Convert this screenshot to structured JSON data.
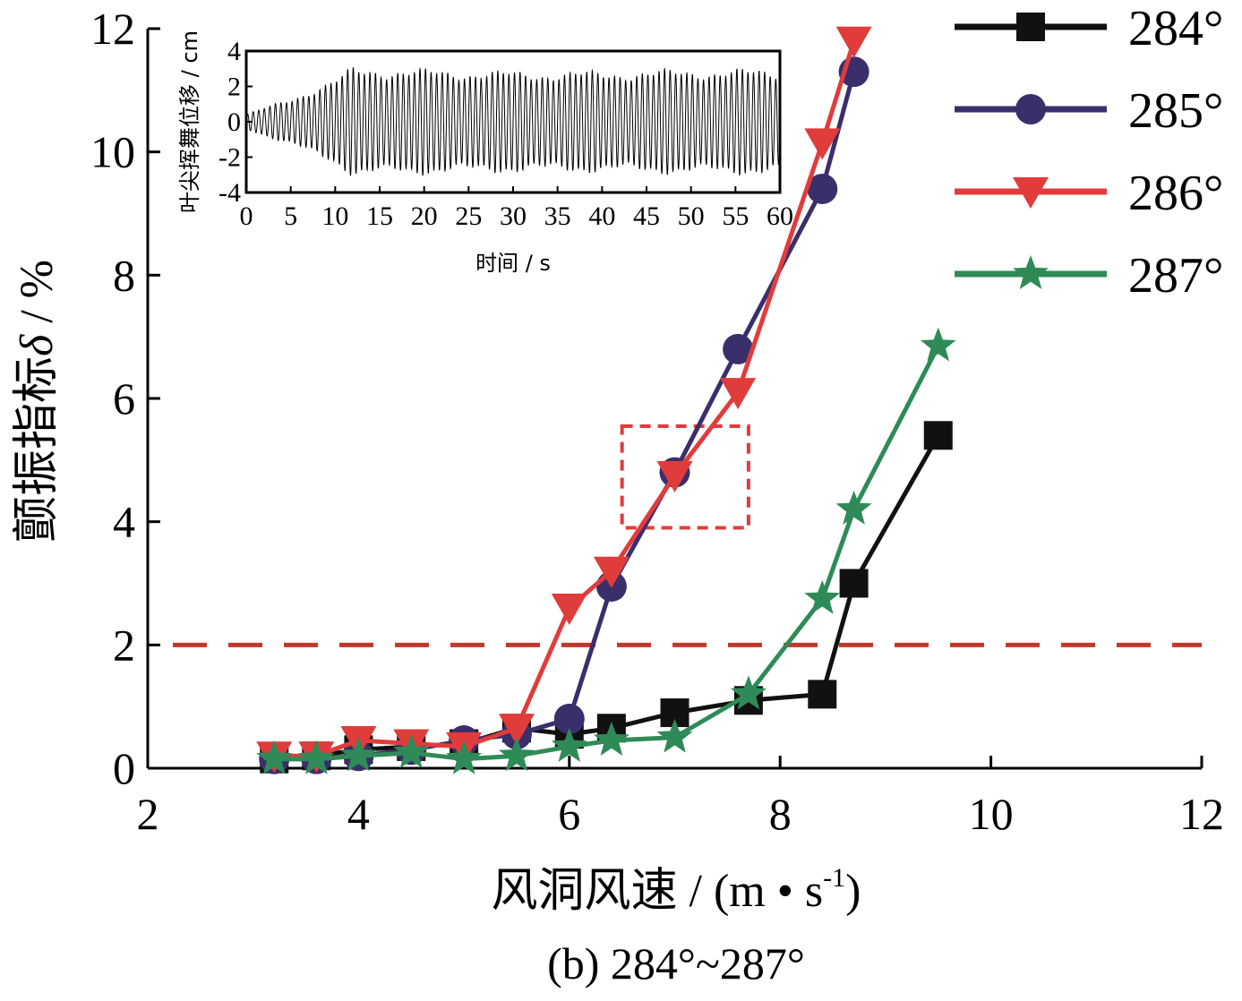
{
  "chart_data": [
    {
      "type": "line",
      "title": "",
      "caption": "(b) 284°~287°",
      "xlabel": "风洞风速 / (m • s",
      "xlabel_sup": "-1",
      "xlabel_close": ")",
      "ylabel_main": "颤振指标",
      "ylabel_symbol": "δ",
      "ylabel_unit": " / %",
      "xlim": [
        2,
        12
      ],
      "ylim": [
        0,
        12
      ],
      "xticks": [
        2,
        4,
        6,
        8,
        10,
        12
      ],
      "yticks": [
        0,
        2,
        4,
        6,
        8,
        10,
        12
      ],
      "grid": false,
      "legend_position": "right-top",
      "threshold_line": {
        "y": 2,
        "color": "#c0392b",
        "style": "dashed"
      },
      "highlight_box": {
        "x": [
          6.5,
          7.7
        ],
        "y": [
          3.9,
          5.55
        ],
        "color": "#e03c3c",
        "style": "dashed"
      },
      "series": [
        {
          "name": "284°",
          "color": "#111111",
          "marker": "square",
          "x": [
            3.2,
            3.6,
            4.0,
            4.5,
            5.0,
            5.5,
            6.0,
            6.4,
            7.0,
            7.7,
            8.4,
            8.7,
            9.5
          ],
          "y": [
            0.15,
            0.2,
            0.3,
            0.35,
            0.4,
            0.65,
            0.55,
            0.65,
            0.9,
            1.1,
            1.2,
            3.0,
            5.4
          ]
        },
        {
          "name": "285°",
          "color": "#3a2f6b",
          "marker": "circle",
          "x": [
            3.2,
            3.6,
            4.0,
            4.5,
            5.0,
            5.5,
            6.0,
            6.4,
            7.0,
            7.6,
            8.4,
            8.7
          ],
          "y": [
            0.15,
            0.15,
            0.2,
            0.3,
            0.45,
            0.55,
            0.8,
            2.95,
            4.8,
            6.8,
            9.4,
            11.3
          ]
        },
        {
          "name": "286°",
          "color": "#e03c3c",
          "marker": "triangle-down",
          "x": [
            3.2,
            3.6,
            4.0,
            4.5,
            5.0,
            5.5,
            6.0,
            6.4,
            7.0,
            7.6,
            8.4,
            8.7
          ],
          "y": [
            0.2,
            0.2,
            0.45,
            0.4,
            0.35,
            0.65,
            2.6,
            3.2,
            4.75,
            6.1,
            10.15,
            11.8
          ]
        },
        {
          "name": "287°",
          "color": "#2e8b57",
          "marker": "star",
          "x": [
            3.2,
            3.6,
            4.0,
            4.5,
            5.0,
            5.5,
            6.0,
            6.4,
            7.0,
            7.7,
            8.4,
            8.7,
            9.5
          ],
          "y": [
            0.15,
            0.15,
            0.2,
            0.25,
            0.15,
            0.2,
            0.35,
            0.45,
            0.5,
            1.2,
            2.75,
            4.2,
            6.85
          ]
        }
      ]
    },
    {
      "type": "line",
      "title": "",
      "xlabel": "时间 / s",
      "ylabel": "叶尖挥舞位移 / cm",
      "xlim": [
        0,
        60
      ],
      "ylim": [
        -4,
        4
      ],
      "xticks": [
        0,
        5,
        10,
        15,
        20,
        25,
        30,
        35,
        40,
        45,
        50,
        55,
        60
      ],
      "yticks": [
        -4,
        -2,
        0,
        2,
        4
      ],
      "grid": false,
      "series": [
        {
          "name": "",
          "color": "#000000",
          "signal": "sinusoid",
          "frequency_hz": 1.6,
          "amplitude_envelope": {
            "t": [
              0,
              5,
              10,
              12,
              20,
              30,
              40,
              50,
              60
            ],
            "a": [
              0.4,
              1.2,
              2.2,
              2.8,
              2.7,
              2.6,
              2.6,
              2.7,
              2.7
            ]
          }
        }
      ]
    }
  ]
}
